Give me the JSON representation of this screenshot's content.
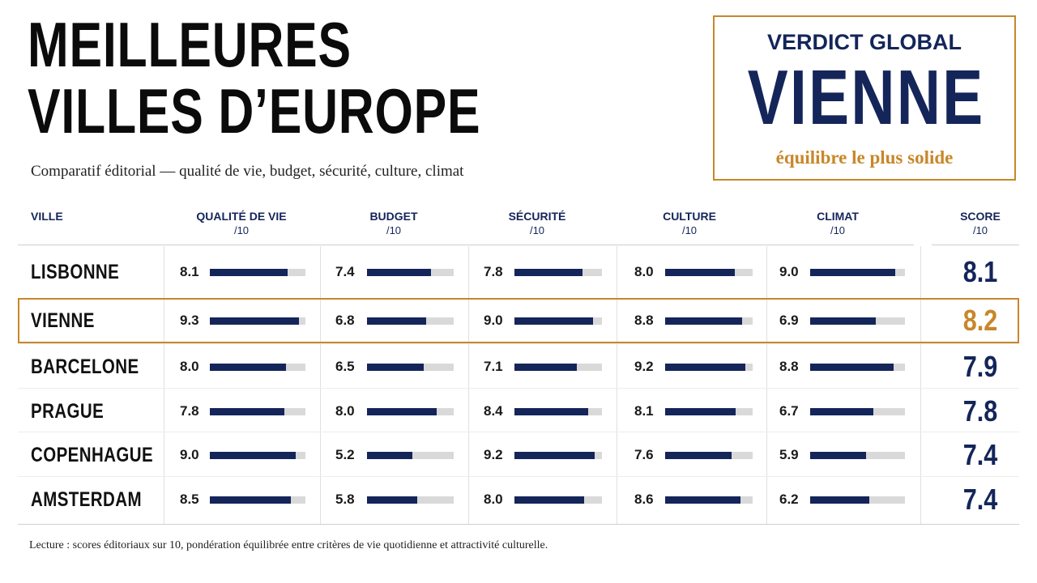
{
  "title_line1": "MEILLEURES",
  "title_line2": "VILLES D’EUROPE",
  "subtitle": "Comparatif éditorial — qualité de vie, budget, sécurité, culture, climat",
  "verdict": {
    "label": "VERDICT GLOBAL",
    "city": "VIENNE",
    "note": "équilibre le plus solide"
  },
  "colors": {
    "navy": "#14255a",
    "accent": "#c8872a",
    "track": "#d9d9d9"
  },
  "chart_data": {
    "type": "table",
    "columns": {
      "city": "VILLE",
      "criteria": [
        "QUALITÉ DE VIE",
        "BUDGET",
        "SÉCURITÉ",
        "CULTURE",
        "CLIMAT"
      ],
      "score": "SCORE",
      "unit": "/10"
    },
    "scale_max": 10,
    "highlight": "VIENNE",
    "rows": [
      {
        "city": "LISBONNE",
        "values": [
          "8.1",
          "7.4",
          "7.8",
          "8.0",
          "9.0"
        ],
        "score": "8.1"
      },
      {
        "city": "VIENNE",
        "values": [
          "9.3",
          "6.8",
          "9.0",
          "8.8",
          "6.9"
        ],
        "score": "8.2"
      },
      {
        "city": "BARCELONE",
        "values": [
          "8.0",
          "6.5",
          "7.1",
          "9.2",
          "8.8"
        ],
        "score": "7.9"
      },
      {
        "city": "PRAGUE",
        "values": [
          "7.8",
          "8.0",
          "8.4",
          "8.1",
          "6.7"
        ],
        "score": "7.8"
      },
      {
        "city": "COPENHAGUE",
        "values": [
          "9.0",
          "5.2",
          "9.2",
          "7.6",
          "5.9"
        ],
        "score": "7.4"
      },
      {
        "city": "AMSTERDAM",
        "values": [
          "8.5",
          "5.8",
          "8.0",
          "8.6",
          "6.2"
        ],
        "score": "7.4"
      }
    ]
  },
  "footnote": "Lecture : scores éditoriaux sur 10, pondération équilibrée entre critères de vie quotidienne et attractivité culturelle."
}
